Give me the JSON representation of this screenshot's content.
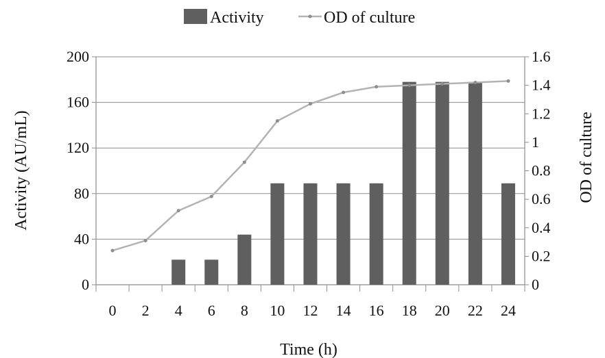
{
  "chart_data": {
    "type": "bar",
    "x": [
      0,
      2,
      4,
      6,
      8,
      10,
      12,
      14,
      16,
      18,
      20,
      22,
      24
    ],
    "categories": [
      "0",
      "2",
      "4",
      "6",
      "8",
      "10",
      "12",
      "14",
      "16",
      "18",
      "20",
      "22",
      "24"
    ],
    "xlabel": "Time (h)",
    "ylabel": "Activity (AU/mL)",
    "y2label": "OD of culture",
    "ylim": [
      0,
      200
    ],
    "y2lim": [
      0,
      1.6
    ],
    "yticks": [
      "0",
      "40",
      "80",
      "120",
      "160",
      "200"
    ],
    "y2ticks": [
      "0",
      "0.2",
      "0.4",
      "0.6",
      "0.8",
      "1",
      "1.2",
      "1.4",
      "1.6"
    ],
    "grid": true,
    "legend_position": "top-center",
    "series": [
      {
        "name": "Activity",
        "type": "bar",
        "axis": "left",
        "color": "#5f5f5f",
        "values": [
          0,
          0,
          22,
          22,
          44,
          89,
          89,
          89,
          89,
          178,
          178,
          178,
          89
        ]
      },
      {
        "name": "OD of culture",
        "type": "line",
        "axis": "right",
        "color": "#b3b3b3",
        "values": [
          0.24,
          0.31,
          0.52,
          0.62,
          0.86,
          1.15,
          1.27,
          1.35,
          1.39,
          1.4,
          1.41,
          1.42,
          1.43
        ]
      }
    ]
  }
}
